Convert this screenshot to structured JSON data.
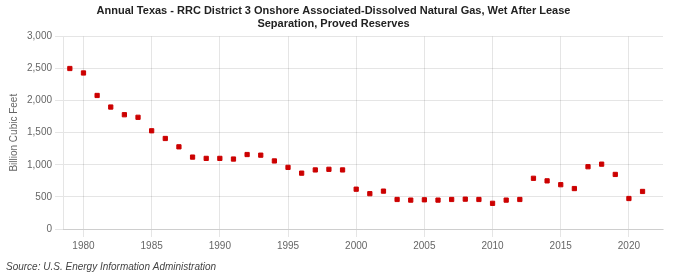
{
  "chart_data": {
    "type": "scatter",
    "title": "Annual Texas - RRC District 3 Onshore Associated-Dissolved Natural Gas, Wet After Lease\nSeparation, Proved Reserves",
    "y_label": "Billion Cubic Feet",
    "annotations": [
      "Source: U.S. Energy Information Administration"
    ],
    "x": [
      1979,
      1980,
      1981,
      1982,
      1983,
      1984,
      1985,
      1986,
      1987,
      1988,
      1989,
      1990,
      1991,
      1992,
      1993,
      1994,
      1995,
      1996,
      1997,
      1998,
      1999,
      2000,
      2001,
      2002,
      2003,
      2004,
      2005,
      2006,
      2007,
      2008,
      2009,
      2010,
      2011,
      2012,
      2013,
      2014,
      2015,
      2016,
      2017,
      2018,
      2019,
      2020,
      2021
    ],
    "values": [
      2500,
      2430,
      2080,
      1900,
      1780,
      1740,
      1530,
      1410,
      1280,
      1120,
      1100,
      1100,
      1090,
      1160,
      1150,
      1060,
      960,
      870,
      920,
      930,
      920,
      620,
      550,
      590,
      460,
      450,
      455,
      450,
      460,
      465,
      460,
      400,
      450,
      460,
      790,
      750,
      690,
      630,
      970,
      1010,
      850,
      475,
      585
    ],
    "color": "#cc0000",
    "marker": "square",
    "xlim": [
      1978.5,
      2022.5
    ],
    "xticks": [
      1980,
      1985,
      1990,
      1995,
      2000,
      2005,
      2010,
      2015,
      2020
    ],
    "ylim": [
      0,
      3000
    ],
    "yticks": [
      0,
      {
        "value": 500,
        "label": "500"
      },
      {
        "value": 1000,
        "label": "1,000"
      },
      {
        "value": 1500,
        "label": "1,500"
      },
      {
        "value": 2000,
        "label": "2,000"
      },
      {
        "value": 2500,
        "label": "2,500"
      },
      {
        "value": 3000,
        "label": "3,000"
      }
    ],
    "grid": true
  }
}
